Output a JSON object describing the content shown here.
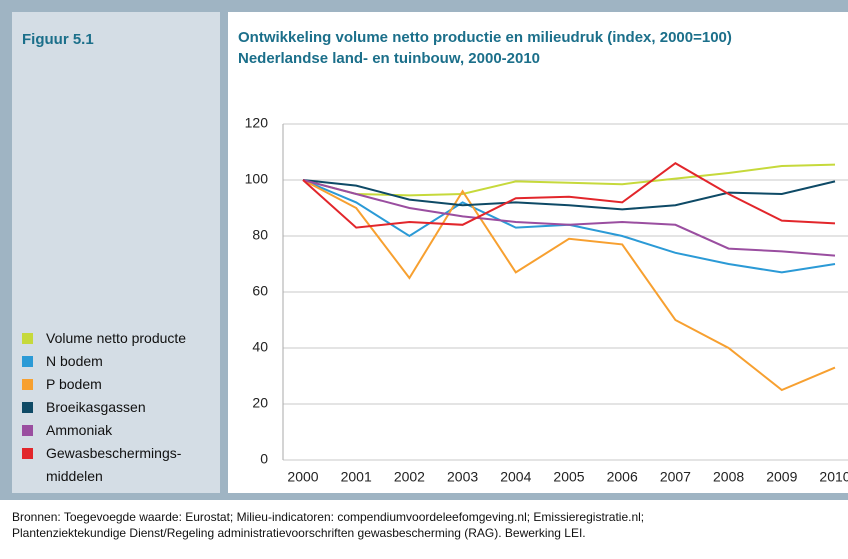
{
  "chart_data": {
    "type": "line",
    "figure_label": "Figuur 5.1",
    "title": "Ontwikkeling volume netto productie en milieudruk (index, 2000=100)",
    "subtitle": "Nederlandse land- en tuinbouw, 2000-2010",
    "categories": [
      "2000",
      "2001",
      "2002",
      "2003",
      "2004",
      "2005",
      "2006",
      "2007",
      "2008",
      "2009",
      "2010"
    ],
    "series": [
      {
        "name": "Volume netto producte",
        "color": "#c6d93b",
        "values": [
          100,
          95,
          94.5,
          95,
          99.5,
          99,
          98.5,
          100.5,
          102.5,
          105,
          105.5
        ]
      },
      {
        "name": "N bodem",
        "color": "#2b9ad6",
        "values": [
          100,
          92,
          80,
          92,
          83,
          84,
          80,
          74,
          70,
          67,
          70
        ]
      },
      {
        "name": "P bodem",
        "color": "#f7a030",
        "values": [
          100,
          90,
          65,
          96,
          67,
          79,
          77,
          50,
          40,
          25,
          33
        ]
      },
      {
        "name": "Broeikasgassen",
        "color": "#0e4a66",
        "values": [
          100,
          98,
          93,
          91,
          92,
          91,
          89.5,
          91,
          95.5,
          95,
          99.5
        ]
      },
      {
        "name": "Ammoniak",
        "color": "#9a4ea0",
        "values": [
          100,
          95,
          90,
          87,
          85,
          84,
          85,
          84,
          75.5,
          74.5,
          73
        ]
      },
      {
        "name": "Gewasbeschermings-middelen",
        "color": "#e2262b",
        "values": [
          100,
          83,
          85,
          84,
          93.5,
          94,
          92,
          106,
          95,
          85.5,
          84.5
        ]
      }
    ],
    "ylim": [
      0,
      120
    ],
    "yticks": [
      0,
      20,
      40,
      60,
      80,
      100,
      120
    ],
    "grid": true,
    "source": [
      "Bronnen: Toegevoegde waarde: Eurostat; Milieu-indicatoren: compendiumvoordeleefomgeving.nl; Emissieregistratie.nl;",
      "Plantenziektekundige Dienst/Regeling administratievoorschriften gewasbescherming (RAG). Bewerking LEI."
    ]
  }
}
